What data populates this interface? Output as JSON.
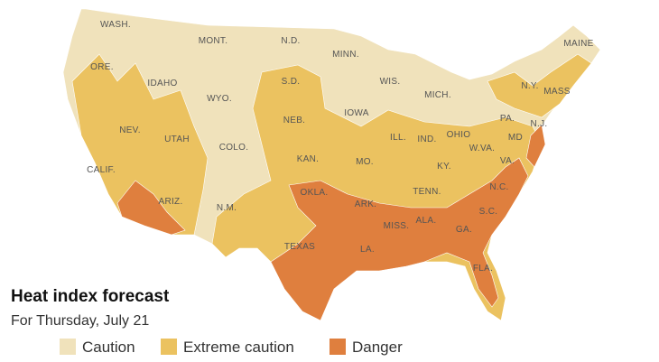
{
  "title": "Heat index forecast",
  "subtitle": "For Thursday, July 21",
  "legend": [
    {
      "label": "Caution",
      "color": "#f0e2bb"
    },
    {
      "label": "Extreme caution",
      "color": "#ebc260"
    },
    {
      "label": "Danger",
      "color": "#df7f3e"
    }
  ],
  "state_labels": [
    "WASH.",
    "MONT.",
    "N.D.",
    "MINN.",
    "MAINE",
    "ORE.",
    "IDAHO",
    "WYO.",
    "S.D.",
    "WIS.",
    "MICH.",
    "N.Y.",
    "MASS",
    "NEB.",
    "IOWA",
    "PA.",
    "N.J.",
    "NEV.",
    "UTAH",
    "COLO.",
    "ILL.",
    "IND.",
    "OHIO",
    "MD",
    "W.VA.",
    "VA.",
    "KAN.",
    "MO.",
    "KY.",
    "CALIF.",
    "ARIZ.",
    "OKLA.",
    "TENN.",
    "N.C.",
    "N.M.",
    "ARK.",
    "S.C.",
    "MISS.",
    "ALA.",
    "GA.",
    "TEXAS",
    "LA.",
    "FLA."
  ]
}
